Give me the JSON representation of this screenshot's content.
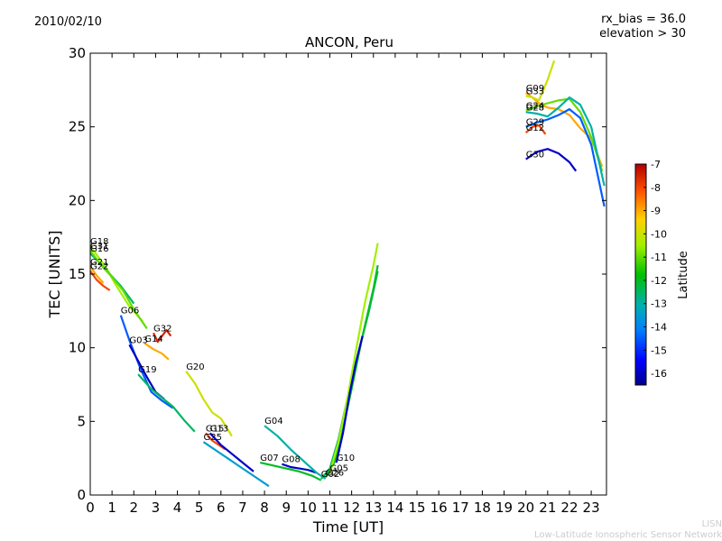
{
  "header": {
    "date": "2010/02/10",
    "rx_bias": "rx_bias = 36.0",
    "elevation": "elevation > 30"
  },
  "footer": {
    "line1": "LISN",
    "line2": "Low-Latitude Ionospheric Sensor Network"
  },
  "colorbar": {
    "label": "Latitude",
    "min": -16.5,
    "max": -7,
    "ticks": [
      -7,
      -8,
      -9,
      -10,
      -11,
      -12,
      -13,
      -14,
      -15,
      -16
    ]
  },
  "chart_data": {
    "type": "line",
    "title": "ANCON, Peru",
    "xlabel": "Time [UT]",
    "ylabel": "TEC [UNITS]",
    "xlim": [
      0,
      23.7
    ],
    "ylim": [
      0,
      30
    ],
    "xticks": [
      0,
      1,
      2,
      3,
      4,
      5,
      6,
      7,
      8,
      9,
      10,
      11,
      12,
      13,
      14,
      15,
      16,
      17,
      18,
      19,
      20,
      21,
      22,
      23
    ],
    "yticks": [
      0,
      5,
      10,
      15,
      20,
      25,
      30
    ],
    "grid": false,
    "series": [
      {
        "name": "G18",
        "lat": -10.5,
        "x": [
          0,
          0.3,
          0.7,
          1.2,
          1.8,
          2.4
        ],
        "y": [
          16.9,
          16.3,
          15.5,
          14.2,
          12.8,
          11.8
        ]
      },
      {
        "name": "G16",
        "lat": -12.5,
        "x": [
          0,
          0.4,
          0.9,
          1.4,
          2.0
        ],
        "y": [
          16.4,
          15.8,
          15.0,
          14.2,
          13.0
        ]
      },
      {
        "name": "G31",
        "lat": -11.0,
        "x": [
          0,
          0.5,
          1.0,
          1.5,
          2.0,
          2.6
        ],
        "y": [
          16.6,
          15.6,
          14.8,
          13.9,
          12.6,
          11.3
        ]
      },
      {
        "name": "G21",
        "lat": -9.0,
        "x": [
          0,
          0.3,
          0.6
        ],
        "y": [
          15.5,
          14.9,
          14.4
        ]
      },
      {
        "name": "G22",
        "lat": -8.0,
        "x": [
          0,
          0.3,
          0.6,
          0.9
        ],
        "y": [
          15.2,
          14.6,
          14.2,
          13.9
        ]
      },
      {
        "name": "G06",
        "lat": -14.5,
        "x": [
          1.4,
          1.8,
          2.3,
          2.8,
          3.3,
          3.8
        ],
        "y": [
          12.2,
          10.5,
          8.6,
          7.0,
          6.4,
          5.9
        ]
      },
      {
        "name": "G03",
        "lat": -16.0,
        "x": [
          1.8,
          2.2,
          2.6,
          3.0,
          3.4
        ],
        "y": [
          10.2,
          9.1,
          8.0,
          7.0,
          6.5
        ]
      },
      {
        "name": "G32",
        "lat": -7.5,
        "x": [
          2.9,
          3.1,
          3.3,
          3.5,
          3.7
        ],
        "y": [
          11.0,
          10.4,
          10.8,
          11.2,
          10.8
        ]
      },
      {
        "name": "G14",
        "lat": -9.0,
        "x": [
          2.5,
          2.9,
          3.3,
          3.6
        ],
        "y": [
          10.3,
          9.9,
          9.6,
          9.2
        ]
      },
      {
        "name": "G20",
        "lat": -10.0,
        "x": [
          4.4,
          4.8,
          5.2,
          5.6,
          6.0,
          6.5
        ],
        "y": [
          8.4,
          7.6,
          6.5,
          5.6,
          5.2,
          4.0
        ]
      },
      {
        "name": "G19",
        "lat": -12.5,
        "x": [
          2.2,
          2.8,
          3.3,
          3.8,
          4.3,
          4.8
        ],
        "y": [
          8.2,
          7.2,
          6.6,
          6.0,
          5.1,
          4.3
        ]
      },
      {
        "name": "G15",
        "lat": -8.0,
        "x": [
          5.3,
          5.6,
          5.9,
          6.2
        ],
        "y": [
          4.2,
          3.7,
          3.4,
          3.1
        ]
      },
      {
        "name": "G25",
        "lat": -13.5,
        "x": [
          5.2,
          5.8,
          6.4,
          7.0,
          7.6,
          8.2
        ],
        "y": [
          3.6,
          3.0,
          2.4,
          1.8,
          1.2,
          0.6
        ]
      },
      {
        "name": "G13",
        "lat": -16.0,
        "x": [
          5.5,
          6.0,
          6.5,
          7.0,
          7.5
        ],
        "y": [
          4.2,
          3.4,
          2.8,
          2.2,
          1.6
        ]
      },
      {
        "name": "G07",
        "lat": -12.0,
        "x": [
          7.8,
          8.4,
          9.0,
          9.6,
          10.2,
          10.6
        ],
        "y": [
          2.2,
          2.0,
          1.8,
          1.6,
          1.3,
          1.0
        ]
      },
      {
        "name": "G08",
        "lat": -16.0,
        "x": [
          8.8,
          9.2,
          9.6,
          10.0,
          10.4
        ],
        "y": [
          2.1,
          1.9,
          1.8,
          1.7,
          1.5
        ]
      },
      {
        "name": "G04",
        "lat": -13.0,
        "x": [
          8.0,
          8.6,
          9.2,
          9.8,
          10.4,
          10.8
        ],
        "y": [
          4.7,
          4.0,
          3.1,
          2.3,
          1.5,
          1.1
        ]
      },
      {
        "name": "G02",
        "lat": -12.5,
        "x": [
          10.6,
          11.0,
          11.4,
          11.8,
          12.3,
          12.8,
          13.2
        ],
        "y": [
          1.1,
          1.8,
          3.8,
          6.5,
          9.6,
          12.5,
          15.2
        ]
      },
      {
        "name": "G26",
        "lat": -12.0,
        "x": [
          10.8,
          11.2,
          11.6,
          12.0,
          12.5,
          13.0,
          13.2
        ],
        "y": [
          1.2,
          2.2,
          4.5,
          7.2,
          10.8,
          14.0,
          15.6
        ]
      },
      {
        "name": "G05",
        "lat": -10.5,
        "x": [
          11.0,
          11.4,
          11.8,
          12.2,
          12.6,
          13.0,
          13.2
        ],
        "y": [
          1.5,
          3.6,
          6.5,
          9.8,
          13.0,
          15.6,
          17.1
        ]
      },
      {
        "name": "G10",
        "lat": -16.0,
        "x": [
          11.3,
          11.6,
          11.9,
          12.2,
          12.5
        ],
        "y": [
          2.2,
          4.2,
          6.8,
          9.0,
          10.8
        ]
      },
      {
        "name": "G09",
        "lat": -9.0,
        "x": [
          20.0,
          20.3,
          20.6,
          21.0,
          21.5,
          22.0,
          22.5,
          23.0,
          23.5
        ],
        "y": [
          27.3,
          27.0,
          26.6,
          26.3,
          26.2,
          25.8,
          24.9,
          24.2,
          22.3
        ]
      },
      {
        "name": "G33",
        "lat": -10.0,
        "x": [
          20.0,
          20.3,
          20.6,
          21.0,
          21.3
        ],
        "y": [
          27.1,
          27.0,
          26.8,
          28.2,
          29.5
        ]
      },
      {
        "name": "G24",
        "lat": -11.0,
        "x": [
          20.0,
          20.5,
          21.0,
          21.5,
          22.0,
          22.5,
          23.0,
          23.5
        ],
        "y": [
          26.1,
          26.4,
          26.6,
          26.8,
          26.9,
          26.0,
          24.3,
          22.0
        ]
      },
      {
        "name": "G28",
        "lat": -13.0,
        "x": [
          20.0,
          20.5,
          21.0,
          21.5,
          22.0,
          22.5,
          23.0,
          23.6
        ],
        "y": [
          26.0,
          25.9,
          25.7,
          26.3,
          27.0,
          26.5,
          25.0,
          21.0
        ]
      },
      {
        "name": "G29",
        "lat": -14.5,
        "x": [
          20.0,
          20.5,
          21.0,
          21.5,
          22.0,
          22.5,
          23.0,
          23.6
        ],
        "y": [
          25.0,
          25.3,
          25.5,
          25.8,
          26.2,
          25.6,
          23.8,
          19.6
        ]
      },
      {
        "name": "G12",
        "lat": -8.0,
        "x": [
          20.0,
          20.3,
          20.6,
          20.9
        ],
        "y": [
          24.6,
          25.0,
          25.1,
          24.5
        ]
      },
      {
        "name": "G30",
        "lat": -16.0,
        "x": [
          20.0,
          20.5,
          21.0,
          21.5,
          22.0,
          22.3
        ],
        "y": [
          22.8,
          23.3,
          23.5,
          23.2,
          22.6,
          22.0
        ]
      }
    ]
  }
}
